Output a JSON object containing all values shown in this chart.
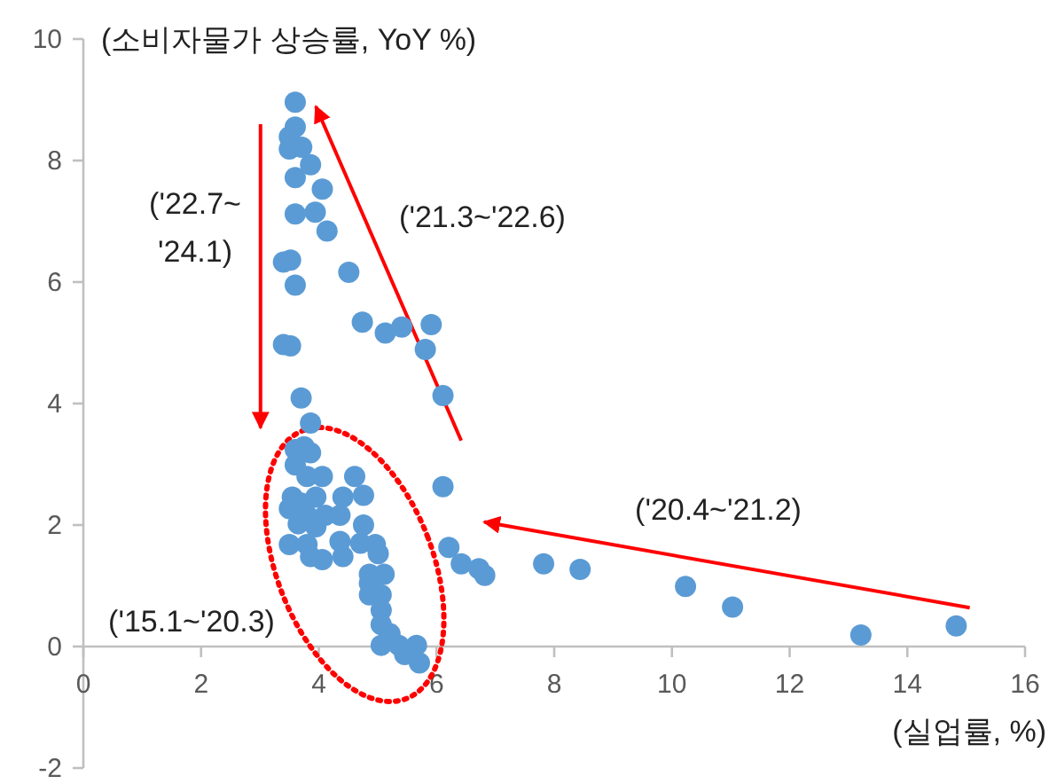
{
  "chart_data": {
    "type": "scatter",
    "xlabel": "(실업률, %)",
    "ylabel": "(소비자물가 상승률, YoY %)",
    "xlim": [
      0,
      16
    ],
    "ylim": [
      -2,
      10
    ],
    "xticks": [
      0,
      2,
      4,
      6,
      8,
      10,
      12,
      14,
      16
    ],
    "yticks": [
      -2,
      0,
      2,
      4,
      6,
      8,
      10
    ],
    "grid": false,
    "marker": "circle",
    "series": [
      {
        "color": "#5b9bd5",
        "x": [
          3.6,
          3.6,
          3.5,
          3.5,
          3.71,
          3.86,
          3.6,
          4.06,
          3.6,
          3.94,
          4.14,
          3.4,
          3.52,
          3.6,
          4.51,
          4.74,
          5.13,
          5.41,
          5.91,
          5.81,
          6.11,
          6.11,
          3.4,
          3.52,
          3.7,
          3.86,
          3.6,
          3.75,
          3.86,
          3.6,
          3.8,
          4.06,
          4.61,
          3.55,
          3.7,
          3.95,
          4.41,
          4.76,
          3.5,
          3.8,
          4.11,
          4.36,
          3.65,
          3.95,
          4.76,
          3.5,
          3.8,
          4.36,
          4.71,
          4.96,
          3.86,
          4.06,
          4.41,
          5.01,
          4.86,
          5.11,
          4.86,
          4.86,
          5.06,
          5.06,
          5.06,
          5.21,
          5.06,
          5.36,
          5.66,
          5.46,
          5.71,
          6.21,
          6.42,
          6.72,
          6.82,
          7.82,
          8.44,
          10.23,
          11.03,
          13.21,
          14.83
        ],
        "values": [
          8.96,
          8.55,
          8.39,
          8.19,
          8.22,
          7.93,
          7.72,
          7.53,
          7.12,
          7.15,
          6.84,
          6.33,
          6.36,
          5.95,
          6.16,
          5.34,
          5.16,
          5.26,
          5.3,
          4.89,
          4.13,
          2.63,
          4.97,
          4.95,
          4.09,
          3.68,
          3.24,
          3.29,
          3.19,
          2.99,
          2.8,
          2.8,
          2.8,
          2.46,
          2.36,
          2.46,
          2.46,
          2.49,
          2.27,
          2.16,
          2.16,
          2.16,
          2.02,
          1.97,
          2.0,
          1.68,
          1.68,
          1.73,
          1.7,
          1.68,
          1.48,
          1.43,
          1.48,
          1.53,
          1.19,
          1.19,
          1.04,
          0.85,
          0.85,
          0.6,
          0.36,
          0.21,
          0.02,
          0.02,
          0.02,
          -0.13,
          -0.27,
          1.63,
          1.36,
          1.28,
          1.17,
          1.36,
          1.27,
          0.99,
          0.65,
          0.19,
          0.34
        ]
      }
    ],
    "annotations": [
      "('22.7~\n'24.1)",
      "('21.3~'22.6)",
      "('20.4~'21.2)",
      "('15.1~'20.3)"
    ]
  }
}
